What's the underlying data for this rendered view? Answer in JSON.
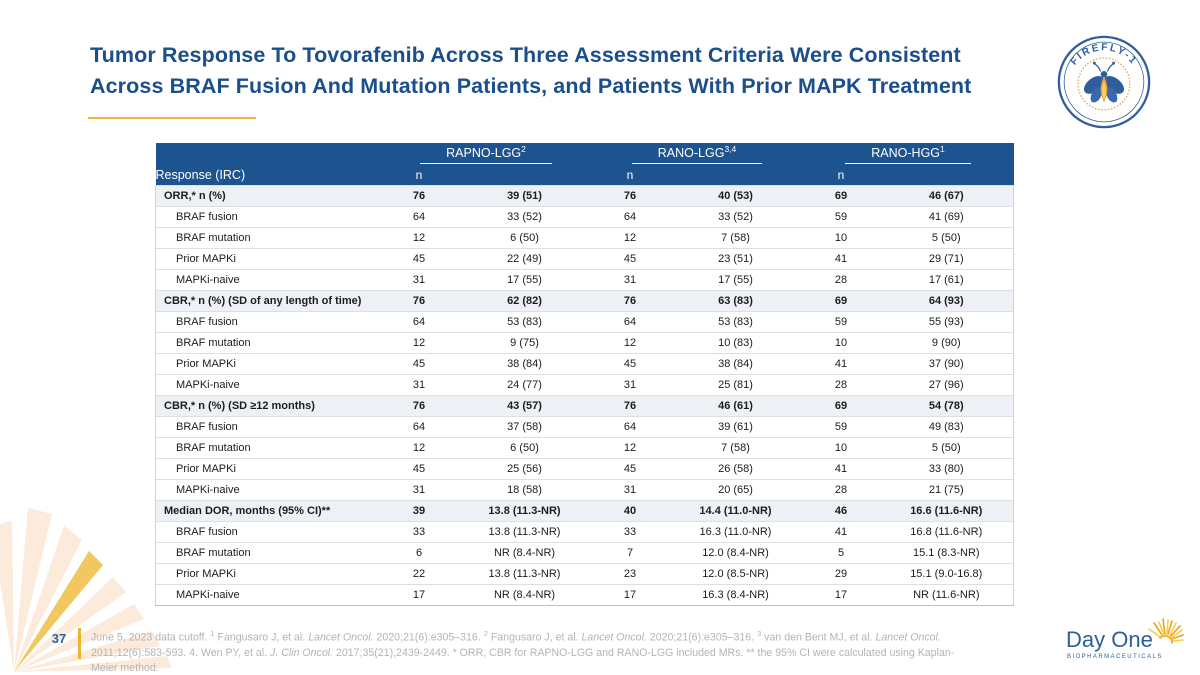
{
  "slide": {
    "title_line1": "Tumor Response To Tovorafenib Across Three Assessment Criteria Were Consistent",
    "title_line2": "Across BRAF Fusion And Mutation Patients, and Patients With Prior MAPK Treatment",
    "page_number": "37"
  },
  "logos": {
    "firefly_label": "FIREFLY-1",
    "dayone_name": "Day One",
    "dayone_sub": "BIOPHARMACEUTICALS"
  },
  "colors": {
    "title_blue": "#1a4e8c",
    "header_blue": "#1d5490",
    "section_row_bg": "#edf1f6",
    "accent_gold": "#e9b63b",
    "footnote_gray": "#b4b4b6"
  },
  "table": {
    "corner_label": "Response (IRC)",
    "n_label": "n",
    "groups": [
      {
        "label": "RAPNO-LGG",
        "sup": "2"
      },
      {
        "label": "RANO-LGG",
        "sup": "3,4"
      },
      {
        "label": "RANO-HGG",
        "sup": "1"
      }
    ],
    "rows": [
      {
        "label": "ORR,* n (%)",
        "type": "section",
        "cells": [
          "76",
          "39 (51)",
          "76",
          "40 (53)",
          "69",
          "46 (67)"
        ]
      },
      {
        "label": "BRAF fusion",
        "type": "sub",
        "cells": [
          "64",
          "33 (52)",
          "64",
          "33 (52)",
          "59",
          "41 (69)"
        ]
      },
      {
        "label": "BRAF mutation",
        "type": "sub",
        "cells": [
          "12",
          "6 (50)",
          "12",
          "7 (58)",
          "10",
          "5 (50)"
        ]
      },
      {
        "label": "Prior MAPKi",
        "type": "sub",
        "cells": [
          "45",
          "22 (49)",
          "45",
          "23 (51)",
          "41",
          "29 (71)"
        ]
      },
      {
        "label": "MAPKi-naive",
        "type": "sub",
        "cells": [
          "31",
          "17 (55)",
          "31",
          "17 (55)",
          "28",
          "17 (61)"
        ]
      },
      {
        "label": "CBR,* n (%) (SD of any length of time)",
        "type": "section",
        "cells": [
          "76",
          "62 (82)",
          "76",
          "63 (83)",
          "69",
          "64 (93)"
        ]
      },
      {
        "label": "BRAF fusion",
        "type": "sub",
        "cells": [
          "64",
          "53 (83)",
          "64",
          "53 (83)",
          "59",
          "55 (93)"
        ]
      },
      {
        "label": "BRAF mutation",
        "type": "sub",
        "cells": [
          "12",
          "9 (75)",
          "12",
          "10 (83)",
          "10",
          "9 (90)"
        ]
      },
      {
        "label": "Prior MAPKi",
        "type": "sub",
        "cells": [
          "45",
          "38 (84)",
          "45",
          "38 (84)",
          "41",
          "37 (90)"
        ]
      },
      {
        "label": "MAPKi-naive",
        "type": "sub",
        "cells": [
          "31",
          "24 (77)",
          "31",
          "25 (81)",
          "28",
          "27 (96)"
        ]
      },
      {
        "label": "CBR,* n (%) (SD ≥12 months)",
        "type": "section",
        "cells": [
          "76",
          "43 (57)",
          "76",
          "46 (61)",
          "69",
          "54 (78)"
        ]
      },
      {
        "label": "BRAF fusion",
        "type": "sub",
        "cells": [
          "64",
          "37 (58)",
          "64",
          "39 (61)",
          "59",
          "49 (83)"
        ]
      },
      {
        "label": "BRAF mutation",
        "type": "sub",
        "cells": [
          "12",
          "6 (50)",
          "12",
          "7 (58)",
          "10",
          "5 (50)"
        ]
      },
      {
        "label": "Prior MAPKi",
        "type": "sub",
        "cells": [
          "45",
          "25 (56)",
          "45",
          "26 (58)",
          "41",
          "33 (80)"
        ]
      },
      {
        "label": "MAPKi-naive",
        "type": "sub",
        "cells": [
          "31",
          "18 (58)",
          "31",
          "20 (65)",
          "28",
          "21 (75)"
        ]
      },
      {
        "label": "Median DOR, months (95% CI)**",
        "type": "section",
        "cells": [
          "39",
          "13.8 (11.3-NR)",
          "40",
          "14.4 (11.0-NR)",
          "46",
          "16.6 (11.6-NR)"
        ]
      },
      {
        "label": "BRAF fusion",
        "type": "sub",
        "cells": [
          "33",
          "13.8 (11.3-NR)",
          "33",
          "16.3 (11.0-NR)",
          "41",
          "16.8 (11.6-NR)"
        ]
      },
      {
        "label": "BRAF mutation",
        "type": "sub",
        "cells": [
          "6",
          "NR (8.4-NR)",
          "7",
          "12.0 (8.4-NR)",
          "5",
          "15.1 (8.3-NR)"
        ]
      },
      {
        "label": "Prior MAPKi",
        "type": "sub",
        "cells": [
          "22",
          "13.8 (11.3-NR)",
          "23",
          "12.0 (8.5-NR)",
          "29",
          "15.1 (9.0-16.8)"
        ]
      },
      {
        "label": "MAPKi-naive",
        "type": "sub",
        "cells": [
          "17",
          "NR (8.4-NR)",
          "17",
          "16.3 (8.4-NR)",
          "17",
          "NR (11.6-NR)"
        ]
      }
    ]
  },
  "footnote_segments": [
    {
      "t": "June 5, 2023 data cutoff. ",
      "s": "n"
    },
    {
      "t": "1",
      "s": "s"
    },
    {
      "t": " Fangusaro J, et al. ",
      "s": "n"
    },
    {
      "t": "Lancet Oncol.",
      "s": "i"
    },
    {
      "t": " 2020;21(6):e305–316. ",
      "s": "n"
    },
    {
      "t": "2",
      "s": "s"
    },
    {
      "t": " Fangusaro J, et al. ",
      "s": "n"
    },
    {
      "t": "Lancet Oncol.",
      "s": "i"
    },
    {
      "t": " 2020;21(6):e305–316. ",
      "s": "n"
    },
    {
      "t": "3",
      "s": "s"
    },
    {
      "t": " van den Bent MJ, et al. ",
      "s": "n"
    },
    {
      "t": "Lancet Oncol.",
      "s": "i"
    },
    {
      "t": " 2011;12(6):583-593. 4. Wen PY, et al. ",
      "s": "n"
    },
    {
      "t": "J. Clin Oncol.",
      "s": "i"
    },
    {
      "t": " 2017;35(21),2439-2449. * ORR, CBR for RAPNO-LGG and RANO-LGG included MRs. ** the 95% CI were calculated using Kaplan-Meier method.",
      "s": "n"
    }
  ]
}
